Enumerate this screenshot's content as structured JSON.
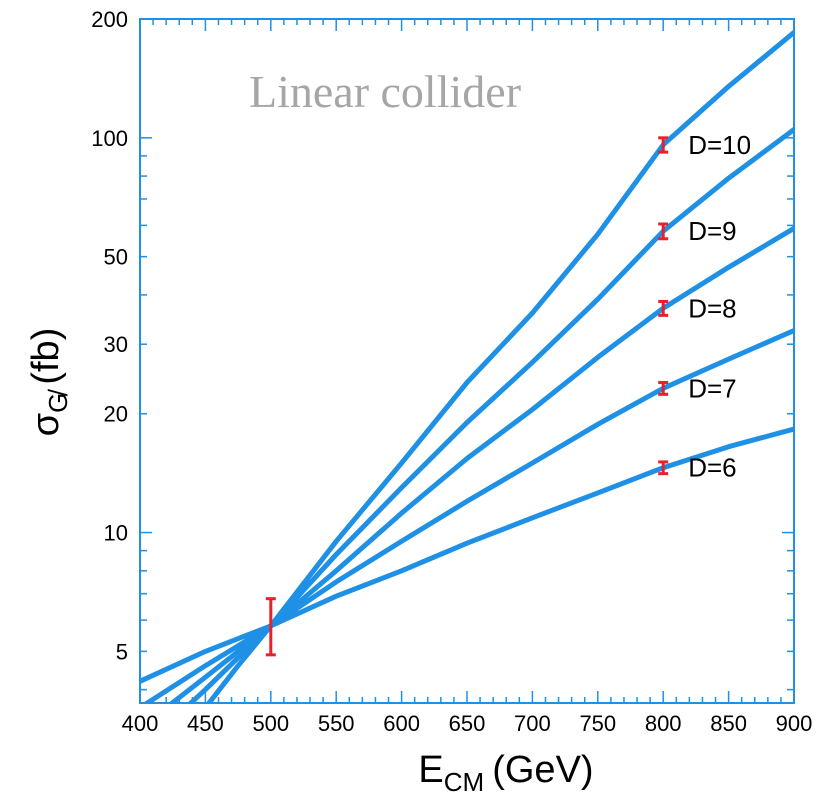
{
  "chart_data": {
    "type": "line",
    "title": "",
    "annotation": "Linear collider",
    "xlabel": {
      "main": "E",
      "sub": "CM",
      "unit": "(GeV)"
    },
    "ylabel": {
      "main": "σ",
      "sub": "G̸",
      "unit": "(fb)"
    },
    "xlim": [
      400,
      900
    ],
    "ylim": [
      3.7,
      200
    ],
    "yscale": "log",
    "x_ticks": [
      400,
      450,
      500,
      550,
      600,
      650,
      700,
      750,
      800,
      850,
      900
    ],
    "x_tick_labels": [
      "400",
      "450",
      "500",
      "550",
      "600",
      "650",
      "700",
      "750",
      "800",
      "850",
      "900"
    ],
    "y_ticks": [
      5,
      10,
      20,
      30,
      50,
      100,
      200
    ],
    "y_tick_labels": [
      "5",
      "10",
      "20",
      "30",
      "50",
      "100",
      "200"
    ],
    "grid": false,
    "line_color": "#1e90e6",
    "error_color": "#e8202a",
    "series": [
      {
        "name": "D=6",
        "x": [
          400,
          450,
          500,
          550,
          600,
          650,
          700,
          750,
          800,
          850,
          900
        ],
        "y": [
          4.2,
          5.0,
          5.8,
          6.9,
          8.0,
          9.4,
          10.9,
          12.6,
          14.6,
          16.5,
          18.3
        ]
      },
      {
        "name": "D=7",
        "x": [
          400,
          450,
          500,
          550,
          600,
          650,
          700,
          750,
          800,
          850,
          900
        ],
        "y": [
          3.6,
          4.6,
          5.8,
          7.5,
          9.5,
          12.0,
          15.0,
          18.8,
          23.2,
          27.5,
          32.5
        ]
      },
      {
        "name": "D=8",
        "x": [
          420,
          450,
          500,
          550,
          600,
          650,
          700,
          750,
          800,
          850,
          900
        ],
        "y": [
          3.6,
          4.3,
          5.8,
          8.0,
          11.2,
          15.4,
          20.5,
          27.8,
          37.0,
          47.0,
          59.0
        ]
      },
      {
        "name": "D=9",
        "x": [
          435,
          450,
          500,
          550,
          600,
          650,
          700,
          750,
          800,
          850,
          900
        ],
        "y": [
          3.6,
          4.0,
          5.8,
          8.8,
          13.0,
          19.0,
          27.0,
          39.0,
          58.0,
          79.0,
          105.0
        ]
      },
      {
        "name": "D=10",
        "x": [
          450,
          475,
          500,
          550,
          600,
          650,
          700,
          750,
          800,
          850,
          900
        ],
        "y": [
          3.6,
          4.6,
          5.8,
          9.5,
          15.0,
          24.0,
          36.0,
          57.0,
          96.0,
          135.0,
          185.0
        ]
      }
    ],
    "error_bars": [
      {
        "x": 500,
        "y": 5.8,
        "low": 4.9,
        "high": 6.8
      },
      {
        "x": 800,
        "y": 14.6,
        "low": 14.1,
        "high": 15.1
      },
      {
        "x": 800,
        "y": 23.2,
        "low": 22.4,
        "high": 24.0
      },
      {
        "x": 800,
        "y": 37.0,
        "low": 35.5,
        "high": 38.5
      },
      {
        "x": 800,
        "y": 58.0,
        "low": 55.5,
        "high": 60.5
      },
      {
        "x": 800,
        "y": 96.0,
        "low": 92.0,
        "high": 100.0
      }
    ]
  }
}
